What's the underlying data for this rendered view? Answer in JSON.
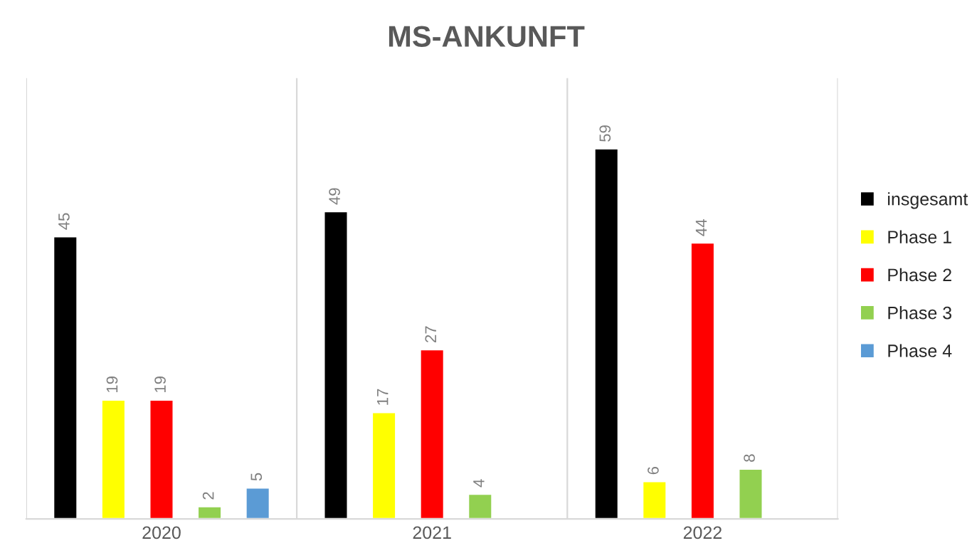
{
  "chart_data": {
    "type": "bar",
    "title": "MS-ANKUNFT",
    "categories": [
      "2020",
      "2021",
      "2022"
    ],
    "series": [
      {
        "name": "insgesamt",
        "color": "#000000",
        "values": [
          45,
          49,
          59
        ]
      },
      {
        "name": "Phase 1",
        "color": "#ffff00",
        "values": [
          19,
          17,
          6
        ]
      },
      {
        "name": "Phase 2",
        "color": "#ff0000",
        "values": [
          19,
          27,
          44
        ]
      },
      {
        "name": "Phase 3",
        "color": "#92d050",
        "values": [
          2,
          4,
          8
        ]
      },
      {
        "name": "Phase 4",
        "color": "#5b9bd5",
        "values": [
          5,
          null,
          null
        ]
      }
    ],
    "data_labels": true,
    "grid": "x",
    "legend": "right"
  }
}
